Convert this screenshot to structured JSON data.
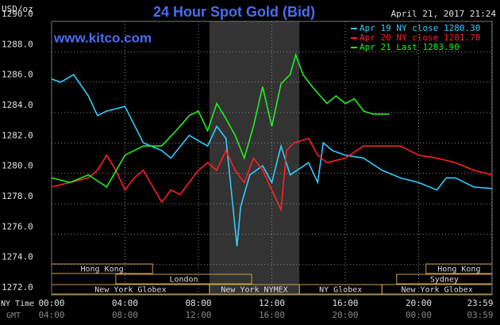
{
  "chart_data": {
    "type": "line",
    "title": "24 Hour Spot Gold (Bid)",
    "unit_label": "USD/oz",
    "site": "www.kitco.com",
    "timestamp": "April 21, 2017 21:24",
    "x_row_labels": [
      "NY Time",
      "GMT"
    ],
    "xlim": [
      0,
      24
    ],
    "xticks": [
      {
        "value": 0,
        "label": "00:00"
      },
      {
        "value": 4,
        "label": "04:00"
      },
      {
        "value": 8,
        "label": "08:00"
      },
      {
        "value": 12,
        "label": "12:00"
      },
      {
        "value": 16,
        "label": "16:00"
      },
      {
        "value": 20,
        "label": "20:00"
      },
      {
        "value": 23.98,
        "label": "23:59"
      }
    ],
    "xticks_gmt": [
      "04:00",
      "08:00",
      "12:00",
      "16:00",
      "20:00",
      "00:00",
      "03:59"
    ],
    "ylim": [
      1272,
      1290
    ],
    "yticks": [
      {
        "value": 1290,
        "label": "1290.0"
      },
      {
        "value": 1288,
        "label": "1288.0"
      },
      {
        "value": 1286,
        "label": "1286.0"
      },
      {
        "value": 1284,
        "label": "1284.0"
      },
      {
        "value": 1282,
        "label": "1282.0"
      },
      {
        "value": 1280,
        "label": "1280.0"
      },
      {
        "value": 1278,
        "label": "1278.0"
      },
      {
        "value": 1276,
        "label": "1276.0"
      },
      {
        "value": 1274,
        "label": "1274.0"
      },
      {
        "value": 1272,
        "label": "1272.0"
      }
    ],
    "grid": true,
    "sessions": [
      [
        {
          "label": "Hong Kong",
          "start": 0,
          "end": 5.5
        },
        {
          "label": "Hong Kong",
          "start": 20.4,
          "end": 24
        }
      ],
      [
        {
          "label": "London",
          "start": 3.5,
          "end": 10.9
        },
        {
          "label": "Sydney",
          "start": 18.8,
          "end": 24
        }
      ],
      [
        {
          "label": "New York Globex",
          "start": 0,
          "end": 8.6
        },
        {
          "label": "New York NYMEX",
          "start": 8.6,
          "end": 13.5
        },
        {
          "label": "NY Globex",
          "start": 13.5,
          "end": 18
        },
        {
          "label": "New York Globex",
          "start": 18,
          "end": 24
        }
      ]
    ],
    "series": [
      {
        "name": "Apr 19 NY close 1280.30",
        "color": "#33ccff",
        "x": [
          0,
          0.5,
          1.2,
          2,
          2.5,
          3,
          4,
          5,
          6,
          6.5,
          7.5,
          8.5,
          9,
          9.5,
          10.1,
          10.3,
          10.8,
          11.5,
          12,
          12.5,
          13,
          14,
          14.5,
          14.8,
          15.3,
          16,
          17,
          18,
          19,
          20,
          21,
          21.5,
          22,
          23,
          24
        ],
        "values": [
          1286.2,
          1286.0,
          1286.5,
          1285.1,
          1283.8,
          1284.1,
          1284.4,
          1282.0,
          1281.5,
          1281.0,
          1282.5,
          1281.8,
          1283.1,
          1282.3,
          1275.2,
          1277.8,
          1279.9,
          1280.5,
          1279.4,
          1281.8,
          1279.9,
          1280.7,
          1279.4,
          1282.0,
          1281.5,
          1281.2,
          1281.0,
          1280.2,
          1279.7,
          1279.4,
          1278.9,
          1279.7,
          1279.7,
          1279.1,
          1279.0
        ]
      },
      {
        "name": "Apr 20 NY close 1281.70",
        "color": "#ff2020",
        "x": [
          0,
          1,
          2,
          2.5,
          3,
          3.5,
          4,
          4.5,
          5,
          6,
          6.5,
          7,
          8,
          8.5,
          9,
          9.5,
          10,
          10.5,
          11,
          11.5,
          12,
          12.5,
          12.8,
          13.2,
          14,
          14.5,
          15,
          16,
          17,
          18,
          19,
          20,
          21,
          22,
          23,
          24
        ],
        "values": [
          1279.1,
          1279.4,
          1279.7,
          1280.2,
          1281.2,
          1280.2,
          1278.9,
          1279.7,
          1280.2,
          1278.1,
          1278.9,
          1278.6,
          1280.2,
          1280.7,
          1280.2,
          1281.5,
          1280.2,
          1279.4,
          1281.0,
          1280.2,
          1278.9,
          1277.6,
          1281.5,
          1282.0,
          1282.3,
          1281.2,
          1280.7,
          1281.0,
          1281.8,
          1281.8,
          1281.8,
          1281.2,
          1281.0,
          1280.7,
          1280.2,
          1279.9
        ]
      },
      {
        "name": "Apr 21 Last 1283.90",
        "color": "#22ee22",
        "x": [
          0,
          1,
          2,
          3,
          4,
          5,
          6,
          7,
          7.5,
          8,
          8.5,
          9,
          9.5,
          10,
          10.5,
          11,
          11.5,
          12,
          12.5,
          13,
          13.3,
          13.7,
          14.2,
          15,
          15.5,
          16,
          16.5,
          17,
          17.5,
          18.4
        ],
        "values": [
          1279.7,
          1279.4,
          1279.9,
          1279.1,
          1281.2,
          1281.8,
          1281.8,
          1283.1,
          1283.8,
          1284.1,
          1282.8,
          1284.6,
          1283.6,
          1282.5,
          1281.0,
          1283.1,
          1285.7,
          1283.1,
          1285.9,
          1286.5,
          1287.8,
          1286.5,
          1285.7,
          1284.6,
          1285.1,
          1284.6,
          1284.9,
          1284.1,
          1283.9,
          1283.9
        ]
      }
    ]
  }
}
